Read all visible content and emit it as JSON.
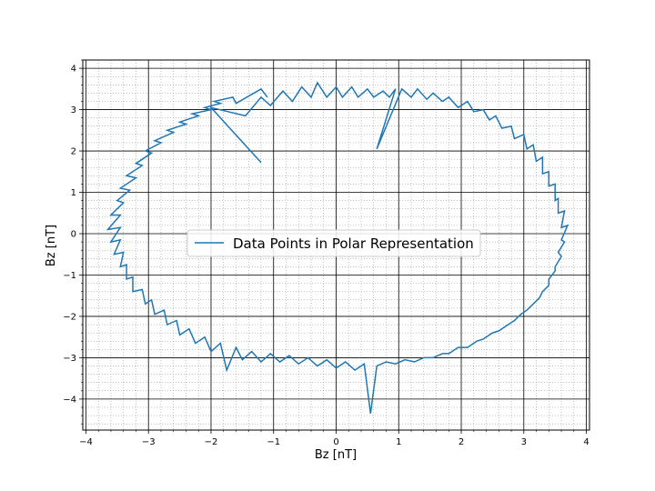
{
  "chart_data": {
    "type": "line",
    "xlabel": "Bz  [nT]",
    "ylabel": "Bz  [nT]",
    "xlim": [
      -4.05,
      4.05
    ],
    "ylim": [
      -4.75,
      4.2
    ],
    "xticks": [
      -4,
      -3,
      -2,
      -1,
      0,
      1,
      2,
      3,
      4
    ],
    "yticks": [
      -4,
      -3,
      -2,
      -1,
      0,
      1,
      2,
      3,
      4
    ],
    "grid": "major and minor",
    "legend_position": "center",
    "line_color": "#1f77b4",
    "series": [
      {
        "name": "Data Points in Polar Representation",
        "points": [
          [
            -1.2,
            1.72
          ],
          [
            -2.0,
            3.05
          ],
          [
            -1.45,
            2.85
          ],
          [
            -1.2,
            3.3
          ],
          [
            -1.05,
            3.1
          ],
          [
            -0.85,
            3.45
          ],
          [
            -0.7,
            3.2
          ],
          [
            -0.55,
            3.55
          ],
          [
            -0.4,
            3.3
          ],
          [
            -0.3,
            3.65
          ],
          [
            -0.15,
            3.3
          ],
          [
            0.0,
            3.55
          ],
          [
            0.1,
            3.3
          ],
          [
            0.25,
            3.55
          ],
          [
            0.35,
            3.3
          ],
          [
            0.5,
            3.5
          ],
          [
            0.6,
            3.3
          ],
          [
            0.75,
            3.45
          ],
          [
            0.85,
            3.3
          ],
          [
            0.95,
            3.5
          ],
          [
            0.65,
            2.05
          ],
          [
            1.05,
            3.5
          ],
          [
            1.2,
            3.3
          ],
          [
            1.3,
            3.5
          ],
          [
            1.45,
            3.25
          ],
          [
            1.55,
            3.4
          ],
          [
            1.7,
            3.2
          ],
          [
            1.8,
            3.3
          ],
          [
            1.95,
            3.05
          ],
          [
            2.1,
            3.2
          ],
          [
            2.2,
            2.95
          ],
          [
            2.35,
            3.0
          ],
          [
            2.45,
            2.75
          ],
          [
            2.55,
            2.85
          ],
          [
            2.65,
            2.55
          ],
          [
            2.8,
            2.6
          ],
          [
            2.85,
            2.3
          ],
          [
            3.0,
            2.4
          ],
          [
            3.05,
            2.05
          ],
          [
            3.15,
            2.15
          ],
          [
            3.2,
            1.75
          ],
          [
            3.3,
            1.85
          ],
          [
            3.3,
            1.45
          ],
          [
            3.4,
            1.5
          ],
          [
            3.4,
            1.15
          ],
          [
            3.5,
            1.2
          ],
          [
            3.5,
            0.8
          ],
          [
            3.55,
            0.85
          ],
          [
            3.55,
            0.5
          ],
          [
            3.65,
            0.55
          ],
          [
            3.6,
            0.15
          ],
          [
            3.7,
            0.2
          ],
          [
            3.6,
            -0.15
          ],
          [
            3.65,
            -0.2
          ],
          [
            3.55,
            -0.45
          ],
          [
            3.6,
            -0.55
          ],
          [
            3.5,
            -0.8
          ],
          [
            3.5,
            -0.9
          ],
          [
            3.4,
            -1.1
          ],
          [
            3.4,
            -1.25
          ],
          [
            3.3,
            -1.4
          ],
          [
            3.25,
            -1.55
          ],
          [
            3.15,
            -1.7
          ],
          [
            3.05,
            -1.85
          ],
          [
            2.95,
            -1.95
          ],
          [
            2.85,
            -2.1
          ],
          [
            2.75,
            -2.2
          ],
          [
            2.6,
            -2.35
          ],
          [
            2.5,
            -2.4
          ],
          [
            2.35,
            -2.55
          ],
          [
            2.25,
            -2.6
          ],
          [
            2.1,
            -2.75
          ],
          [
            1.95,
            -2.75
          ],
          [
            1.8,
            -2.9
          ],
          [
            1.7,
            -2.9
          ],
          [
            1.55,
            -3.0
          ],
          [
            1.4,
            -3.0
          ],
          [
            1.25,
            -3.1
          ],
          [
            1.1,
            -3.05
          ],
          [
            0.95,
            -3.15
          ],
          [
            0.8,
            -3.1
          ],
          [
            0.65,
            -3.2
          ],
          [
            0.55,
            -4.35
          ],
          [
            0.45,
            -3.15
          ],
          [
            0.3,
            -3.3
          ],
          [
            0.15,
            -3.1
          ],
          [
            0.0,
            -3.25
          ],
          [
            -0.15,
            -3.05
          ],
          [
            -0.3,
            -3.2
          ],
          [
            -0.45,
            -3.0
          ],
          [
            -0.6,
            -3.15
          ],
          [
            -0.75,
            -2.95
          ],
          [
            -0.9,
            -3.1
          ],
          [
            -1.05,
            -2.9
          ],
          [
            -1.2,
            -3.1
          ],
          [
            -1.35,
            -2.85
          ],
          [
            -1.5,
            -3.05
          ],
          [
            -1.6,
            -2.75
          ],
          [
            -1.75,
            -3.3
          ],
          [
            -1.85,
            -2.65
          ],
          [
            -2.0,
            -2.85
          ],
          [
            -2.1,
            -2.5
          ],
          [
            -2.25,
            -2.65
          ],
          [
            -2.35,
            -2.3
          ],
          [
            -2.5,
            -2.45
          ],
          [
            -2.55,
            -2.1
          ],
          [
            -2.7,
            -2.2
          ],
          [
            -2.75,
            -1.85
          ],
          [
            -2.9,
            -1.95
          ],
          [
            -2.95,
            -1.6
          ],
          [
            -3.05,
            -1.7
          ],
          [
            -3.1,
            -1.35
          ],
          [
            -3.25,
            -1.4
          ],
          [
            -3.25,
            -1.05
          ],
          [
            -3.35,
            -1.1
          ],
          [
            -3.35,
            -0.75
          ],
          [
            -3.45,
            -0.8
          ],
          [
            -3.4,
            -0.45
          ],
          [
            -3.55,
            -0.5
          ],
          [
            -3.45,
            -0.15
          ],
          [
            -3.6,
            -0.2
          ],
          [
            -3.45,
            0.15
          ],
          [
            -3.65,
            0.1
          ],
          [
            -3.45,
            0.45
          ],
          [
            -3.6,
            0.45
          ],
          [
            -3.4,
            0.75
          ],
          [
            -3.5,
            0.8
          ],
          [
            -3.3,
            1.05
          ],
          [
            -3.45,
            1.1
          ],
          [
            -3.2,
            1.35
          ],
          [
            -3.35,
            1.4
          ],
          [
            -3.1,
            1.65
          ],
          [
            -3.2,
            1.7
          ],
          [
            -2.95,
            1.95
          ],
          [
            -3.05,
            2.0
          ],
          [
            -2.8,
            2.2
          ],
          [
            -2.9,
            2.25
          ],
          [
            -2.6,
            2.45
          ],
          [
            -2.7,
            2.5
          ],
          [
            -2.4,
            2.65
          ],
          [
            -2.5,
            2.7
          ],
          [
            -2.2,
            2.85
          ],
          [
            -2.3,
            2.9
          ],
          [
            -2.0,
            3.0
          ],
          [
            -2.1,
            3.05
          ],
          [
            -1.85,
            3.15
          ],
          [
            -1.95,
            3.2
          ],
          [
            -1.65,
            3.3
          ],
          [
            -1.6,
            3.15
          ],
          [
            -1.2,
            3.5
          ],
          [
            -1.1,
            3.3
          ]
        ]
      }
    ]
  }
}
